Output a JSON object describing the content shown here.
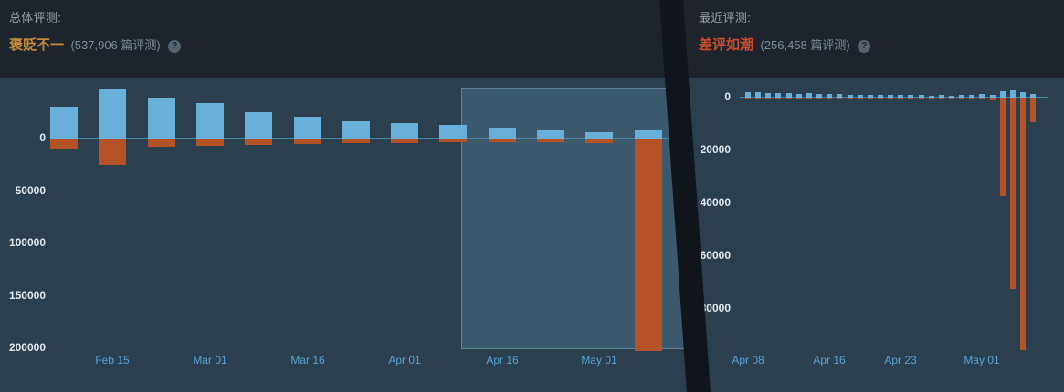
{
  "overall": {
    "title": "总体评测:",
    "summary": "褒贬不一",
    "count": "(537,906 篇评测)",
    "help": "?"
  },
  "recent": {
    "title": "最近评测:",
    "summary": "差评如潮",
    "count": "(256,458 篇评测)",
    "help": "?"
  },
  "colors": {
    "page_bg": "#0f151b",
    "header_bg": "#1d242c",
    "plot_bg": "#2b3f4f",
    "positive_bar": "#68b0da",
    "negative_bar": "#b55327",
    "zero_line": "#4d86a5",
    "axis_value_text": "#e4e9ee",
    "axis_date_text": "#58a4d6",
    "title_text": "#9aa3ab",
    "count_text": "#7e8c99",
    "mixed_text": "#c28a3a",
    "negative_text": "#cc4e2c",
    "help_bg": "#566470",
    "help_text": "#1b232b",
    "highlight_fill": "rgba(120,178,218,0.22)",
    "highlight_border": "rgba(146,198,234,0.40)"
  },
  "chart_data": [
    {
      "id": "overall_histogram",
      "type": "bar",
      "title": "总体评测 (Overall reviews histogram)",
      "y_direction": "down",
      "y_ticks": [
        0,
        50000,
        100000,
        150000,
        200000
      ],
      "x_ticks": [
        {
          "index": 1,
          "label": "Feb 15"
        },
        {
          "index": 3,
          "label": "Mar 01"
        },
        {
          "index": 5,
          "label": "Mar 16"
        },
        {
          "index": 7,
          "label": "Apr 01"
        },
        {
          "index": 9,
          "label": "Apr 16"
        },
        {
          "index": 11,
          "label": "May 01"
        }
      ],
      "series": [
        {
          "name": "positive",
          "values": [
            30000,
            47000,
            38000,
            34000,
            25000,
            21000,
            16500,
            15000,
            13000,
            10000,
            8000,
            6000,
            8000
          ]
        },
        {
          "name": "negative",
          "values": [
            9000,
            24000,
            7000,
            6000,
            5000,
            4500,
            3500,
            3500,
            3000,
            2500,
            2500,
            3500,
            202000
          ]
        }
      ],
      "highlight_range": {
        "from_index": 8.5,
        "to_index": 12.5
      }
    },
    {
      "id": "recent_histogram",
      "type": "bar",
      "title": "最近评测 (Recent reviews histogram)",
      "y_direction": "down",
      "y_ticks": [
        0,
        20000,
        40000,
        60000,
        80000
      ],
      "x_ticks": [
        {
          "index": 0,
          "label": "Apr 08"
        },
        {
          "index": 8,
          "label": "Apr 16"
        },
        {
          "index": 15,
          "label": "Apr 23"
        },
        {
          "index": 23,
          "label": "May 01"
        }
      ],
      "series": [
        {
          "name": "positive",
          "values": [
            2100,
            1900,
            1700,
            1800,
            1600,
            1500,
            1600,
            1400,
            1300,
            1400,
            1200,
            1100,
            1200,
            1100,
            1000,
            900,
            1000,
            900,
            800,
            900,
            800,
            1000,
            900,
            1400,
            1100,
            2400,
            2800,
            1900,
            1400
          ]
        },
        {
          "name": "negative",
          "values": [
            300,
            250,
            250,
            300,
            250,
            200,
            250,
            200,
            200,
            250,
            200,
            150,
            200,
            150,
            150,
            150,
            150,
            100,
            150,
            150,
            100,
            150,
            200,
            400,
            700,
            37000,
            72000,
            95000,
            9000
          ]
        }
      ]
    }
  ]
}
